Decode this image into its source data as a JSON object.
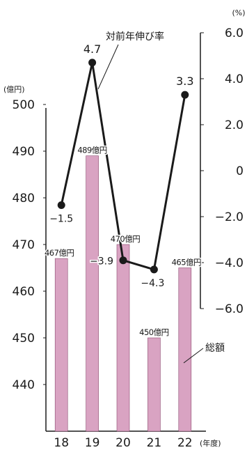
{
  "chart_data": {
    "type": "bar+line",
    "categories": [
      "18",
      "19",
      "20",
      "21",
      "22"
    ],
    "x_unit": "(年度)",
    "left_axis": {
      "unit": "(億円)",
      "ticks": [
        440,
        450,
        460,
        470,
        480,
        490,
        500
      ],
      "range": [
        431,
        500
      ]
    },
    "right_axis": {
      "unit": "(%)",
      "ticks": [
        -6.0,
        -4.0,
        -2.0,
        0,
        2.0,
        4.0,
        6.0
      ],
      "tick_labels": [
        "−6.0",
        "−4.0",
        "−2.0",
        "0",
        "2.0",
        "4.0",
        "6.0"
      ],
      "range": [
        -6.0,
        6.0
      ]
    },
    "series": [
      {
        "name": "総額",
        "type": "bar",
        "axis": "left",
        "color": "#d9a3c2",
        "values": [
          467,
          489,
          470,
          450,
          465
        ],
        "labels": [
          "467億円",
          "489億円",
          "470億円",
          "450億円",
          "465億円"
        ]
      },
      {
        "name": "対前年伸び率",
        "type": "line",
        "axis": "right",
        "color": "#1a1a1a",
        "values": [
          -1.5,
          4.7,
          -3.9,
          -4.3,
          3.3
        ],
        "labels": [
          "−1.5",
          "4.7",
          "−3.9",
          "−4.3",
          "3.3"
        ]
      }
    ]
  }
}
